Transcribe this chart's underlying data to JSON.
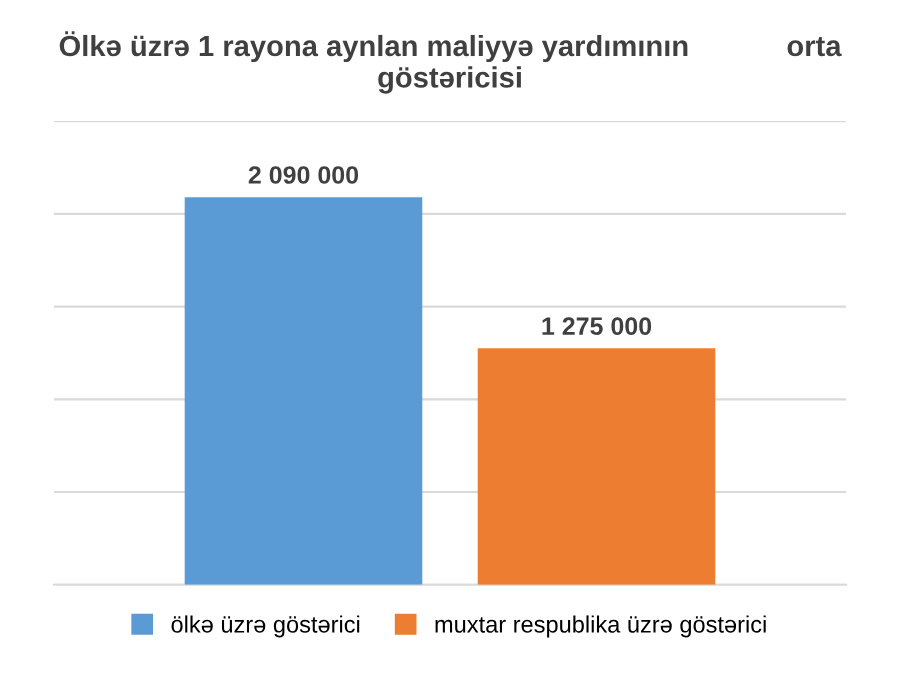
{
  "chart_data": {
    "type": "bar",
    "title": "Ölkə üzrə 1 rayona aynlan maliyyə yardımının            orta göstəricisi",
    "categories": [
      null
    ],
    "series": [
      {
        "name": "ölkə üzrə göstərici",
        "color": "#5b9bd5",
        "values": [
          2090000
        ],
        "value_labels": [
          "2 090 000"
        ]
      },
      {
        "name": "muxtar respublika üzrə göstərici",
        "color": "#ed7d31",
        "values": [
          1275000
        ],
        "value_labels": [
          "1 275 000"
        ]
      }
    ],
    "ylim": [
      0,
      2500000
    ],
    "yticks": [
      {
        "value": 0,
        "label": null
      },
      {
        "value": 500000,
        "label": null
      },
      {
        "value": 1000000,
        "label": null
      },
      {
        "value": 1500000,
        "label": null
      },
      {
        "value": 2000000,
        "label": null
      },
      {
        "value": 2500000,
        "label": null
      }
    ],
    "grid": "y",
    "legend": "bottom"
  }
}
